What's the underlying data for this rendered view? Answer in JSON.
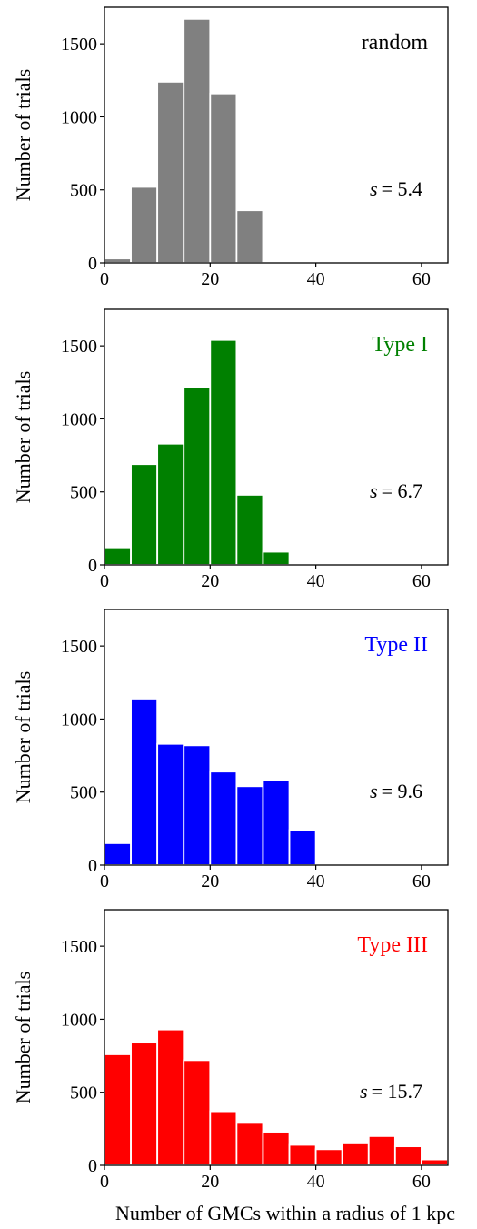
{
  "chart_data": [
    {
      "type": "bar",
      "panel_label": "random",
      "s_symbol": "s",
      "s_value": "= 5.4",
      "color": "#808080",
      "ylabel": "Number of trials",
      "xlabel": "",
      "xlim": [
        0,
        65
      ],
      "ylim": [
        0,
        1750
      ],
      "xticks": [
        "0",
        "20",
        "40",
        "60"
      ],
      "yticks": [
        "0",
        "500",
        "1000",
        "1500"
      ],
      "bin_width": 5,
      "bins": [
        0,
        5,
        10,
        15,
        20,
        25,
        30,
        35,
        40,
        45,
        50,
        55,
        60
      ],
      "values": [
        30,
        520,
        1240,
        1670,
        1160,
        360,
        10,
        0,
        0,
        0,
        0,
        0,
        0
      ]
    },
    {
      "type": "bar",
      "panel_label": "Type I",
      "s_symbol": "s",
      "s_value": "= 6.7",
      "color": "#008000",
      "ylabel": "Number of trials",
      "xlabel": "",
      "xlim": [
        0,
        65
      ],
      "ylim": [
        0,
        1750
      ],
      "xticks": [
        "0",
        "20",
        "40",
        "60"
      ],
      "yticks": [
        "0",
        "500",
        "1000",
        "1500"
      ],
      "bin_width": 5,
      "bins": [
        0,
        5,
        10,
        15,
        20,
        25,
        30,
        35,
        40,
        45,
        50,
        55,
        60
      ],
      "values": [
        120,
        690,
        830,
        1220,
        1540,
        480,
        90,
        0,
        0,
        0,
        0,
        0,
        0
      ]
    },
    {
      "type": "bar",
      "panel_label": "Type II",
      "s_symbol": "s",
      "s_value": "= 9.6",
      "color": "#0000ff",
      "ylabel": "Number of trials",
      "xlabel": "",
      "xlim": [
        0,
        65
      ],
      "ylim": [
        0,
        1750
      ],
      "xticks": [
        "0",
        "20",
        "40",
        "60"
      ],
      "yticks": [
        "0",
        "500",
        "1000",
        "1500"
      ],
      "bin_width": 5,
      "bins": [
        0,
        5,
        10,
        15,
        20,
        25,
        30,
        35,
        40,
        45,
        50,
        55,
        60
      ],
      "values": [
        150,
        1140,
        830,
        820,
        640,
        540,
        580,
        240,
        0,
        0,
        0,
        0,
        0
      ]
    },
    {
      "type": "bar",
      "panel_label": "Type III",
      "s_symbol": "s",
      "s_value": "= 15.7",
      "color": "#ff0000",
      "ylabel": "Number of trials",
      "xlabel": "Number of GMCs within a radius of 1 kpc",
      "xlim": [
        0,
        65
      ],
      "ylim": [
        0,
        1750
      ],
      "xticks": [
        "0",
        "20",
        "40",
        "60"
      ],
      "yticks": [
        "0",
        "500",
        "1000",
        "1500"
      ],
      "bin_width": 5,
      "bins": [
        0,
        5,
        10,
        15,
        20,
        25,
        30,
        35,
        40,
        45,
        50,
        55,
        60
      ],
      "values": [
        760,
        840,
        930,
        720,
        370,
        290,
        230,
        140,
        110,
        150,
        200,
        130,
        40
      ]
    }
  ]
}
